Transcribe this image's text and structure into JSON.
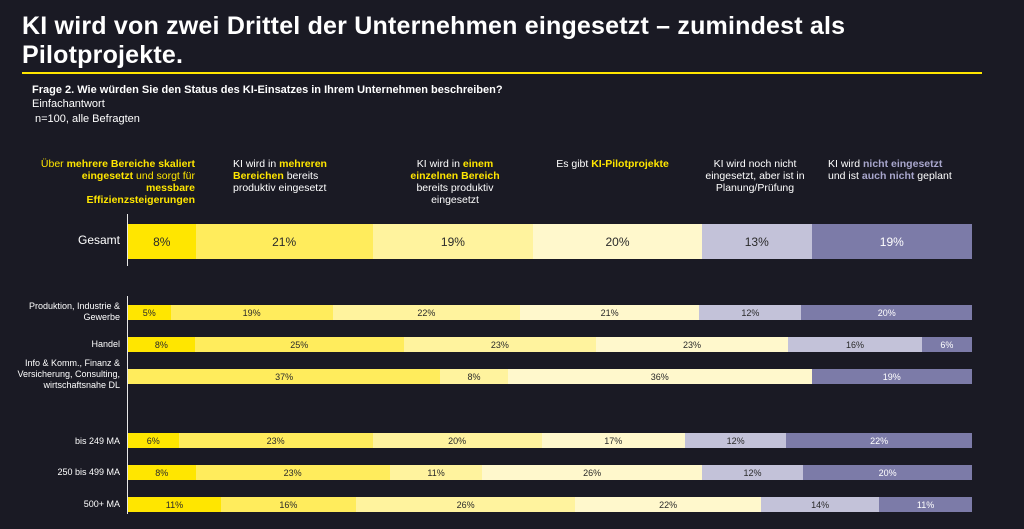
{
  "title": "KI wird von zwei Drittel der Unternehmen eingesetzt – zumindest als Pilotprojekte.",
  "question": "Frage 2. Wie würden Sie den Status des KI-Einsatzes in Ihrem Unternehmen beschreiben?",
  "answer_type": "Einfachantwort",
  "sample": "n=100, alle Befragten",
  "legend": [
    {
      "parts": [
        {
          "t": "Über ",
          "h": false
        },
        {
          "t": "mehrere Bereiche skaliert eingesetzt",
          "h": true
        },
        {
          "t": " und sorgt für ",
          "h": false
        },
        {
          "t": "messbare Effizienzsteigerungen",
          "h": true
        }
      ],
      "color": "#ffe600",
      "hl_color": "#ffe600",
      "align": "right"
    },
    {
      "parts": [
        {
          "t": "KI wird in ",
          "h": false
        },
        {
          "t": "mehreren Bereichen",
          "h": true
        },
        {
          "t": " bereits produktiv eingesetzt",
          "h": false
        }
      ],
      "color": "#ffffff",
      "hl_color": "#ffe600",
      "align": "left"
    },
    {
      "parts": [
        {
          "t": "KI wird in ",
          "h": false
        },
        {
          "t": "einem einzelnen Bereich",
          "h": true
        },
        {
          "t": " bereits produktiv eingesetzt",
          "h": false
        }
      ],
      "color": "#ffffff",
      "hl_color": "#ffe600",
      "align": "center"
    },
    {
      "parts": [
        {
          "t": "Es gibt ",
          "h": false
        },
        {
          "t": "KI-Pilotprojekte",
          "h": true
        }
      ],
      "color": "#ffffff",
      "hl_color": "#ffe600",
      "align": "center"
    },
    {
      "parts": [
        {
          "t": "KI wird noch nicht eingesetzt, aber ist in Planung/Prüfung",
          "h": false
        }
      ],
      "color": "#ffffff",
      "hl_color": "#ffffff",
      "align": "center"
    },
    {
      "parts": [
        {
          "t": "KI wird ",
          "h": false
        },
        {
          "t": "nicht eingesetzt",
          "h": true
        },
        {
          "t": " und ist ",
          "h": false
        },
        {
          "t": "auch nicht",
          "h": true
        },
        {
          "t": " geplant",
          "h": false
        }
      ],
      "color": "#ffffff",
      "hl_color": "#a8a6cc",
      "align": "left"
    }
  ],
  "colors": [
    "#ffe600",
    "#ffec5c",
    "#fff39e",
    "#fff8cc",
    "#c3c2d9",
    "#7c7ba8"
  ],
  "chart_data": {
    "type": "bar",
    "stacked": true,
    "orientation": "horizontal",
    "xlim": [
      0,
      100
    ],
    "series_names": [
      "Über mehrere Bereiche skaliert eingesetzt und sorgt für messbare Effizienzsteigerungen",
      "KI wird in mehreren Bereichen bereits produktiv eingesetzt",
      "KI wird in einem einzelnen Bereich bereits produktiv eingesetzt",
      "Es gibt KI-Pilotprojekte",
      "KI wird noch nicht eingesetzt, aber ist in Planung/Prüfung",
      "KI wird nicht eingesetzt und ist auch nicht geplant"
    ],
    "rows": [
      {
        "label": "Gesamt",
        "values": [
          8,
          21,
          19,
          20,
          13,
          19
        ],
        "labels": [
          "8%",
          "21%",
          "19%",
          "20%",
          "13%",
          "19%"
        ]
      },
      {
        "label": "Produktion, Industrie & Gewerbe",
        "values": [
          5,
          19,
          22,
          21,
          12,
          20
        ],
        "labels": [
          "5%",
          "19%",
          "22%",
          "21%",
          "12%",
          "20%"
        ]
      },
      {
        "label": "Handel",
        "values": [
          8,
          25,
          23,
          23,
          16,
          6
        ],
        "labels": [
          "8%",
          "25%",
          "23%",
          "23%",
          "16%",
          "6%"
        ]
      },
      {
        "label": "Info & Komm., Finanz & Versicherung, Consulting, wirtschaftsnahe DL",
        "values": [
          0,
          37,
          8,
          36,
          0,
          19
        ],
        "labels": [
          "",
          "37%",
          "8%",
          "36%",
          "",
          "19%"
        ]
      },
      {
        "label": "bis 249 MA",
        "values": [
          6,
          23,
          20,
          17,
          12,
          22
        ],
        "labels": [
          "6%",
          "23%",
          "20%",
          "17%",
          "12%",
          "22%"
        ]
      },
      {
        "label": "250 bis 499 MA",
        "values": [
          8,
          23,
          11,
          26,
          12,
          20
        ],
        "labels": [
          "8%",
          "23%",
          "11%",
          "26%",
          "12%",
          "20%"
        ]
      },
      {
        "label": "500+ MA",
        "values": [
          11,
          16,
          26,
          22,
          14,
          11
        ],
        "labels": [
          "11%",
          "16%",
          "26%",
          "22%",
          "14%",
          "11%"
        ]
      }
    ]
  }
}
